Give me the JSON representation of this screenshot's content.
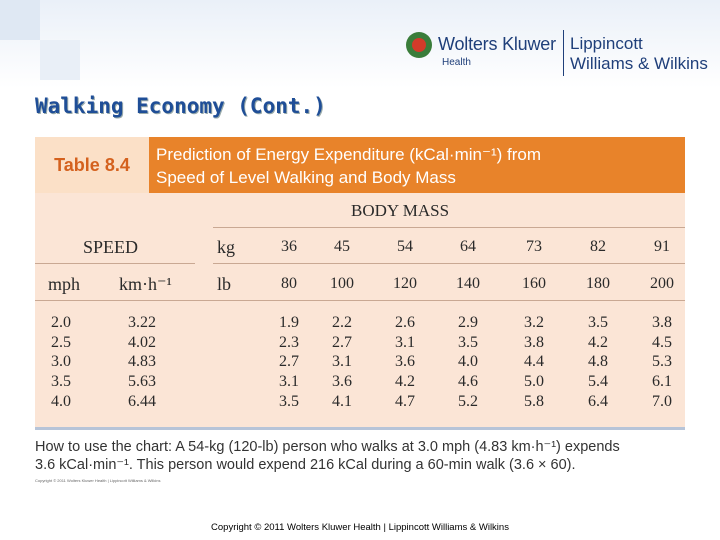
{
  "logo": {
    "company": "Wolters Kluwer",
    "division": "Health",
    "partner_line1": "Lippincott",
    "partner_line2": "Williams & Wilkins"
  },
  "slide_title": "Walking Economy (Cont.)",
  "table": {
    "label": "Table 8.4",
    "caption_line1": "Prediction of Energy Expenditure (kCal·min⁻¹) from",
    "caption_line2": "Speed of Level Walking and Body Mass",
    "group_header": "BODY MASS",
    "speed_header": "SPEED",
    "kg_label": "kg",
    "lb_label": "lb",
    "mph_label": "mph",
    "kmh_label": "km·h⁻¹",
    "kg_values": [
      "36",
      "45",
      "54",
      "64",
      "73",
      "82",
      "91"
    ],
    "lb_values": [
      "80",
      "100",
      "120",
      "140",
      "160",
      "180",
      "200"
    ],
    "mph": [
      "2.0",
      "2.5",
      "3.0",
      "3.5",
      "4.0"
    ],
    "kmh": [
      "3.22",
      "4.02",
      "4.83",
      "5.63",
      "6.44"
    ],
    "columns": [
      [
        "1.9",
        "2.3",
        "2.7",
        "3.1",
        "3.5"
      ],
      [
        "2.2",
        "2.7",
        "3.1",
        "3.6",
        "4.1"
      ],
      [
        "2.6",
        "3.1",
        "3.6",
        "4.2",
        "4.7"
      ],
      [
        "2.9",
        "3.5",
        "4.0",
        "4.6",
        "5.2"
      ],
      [
        "3.2",
        "3.8",
        "4.4",
        "5.0",
        "5.8"
      ],
      [
        "3.5",
        "4.2",
        "4.8",
        "5.4",
        "6.4"
      ],
      [
        "3.8",
        "4.5",
        "5.3",
        "6.1",
        "7.0"
      ]
    ]
  },
  "note_line1": "How to use the chart: A 54-kg (120-lb) person who walks at 3.0 mph (4.83 km·h⁻¹) expends",
  "note_line2": "3.6 kCal·min⁻¹. This person would expend 216 kCal during a 60-min walk (3.6 × 60).",
  "tiny_copyright": "Copyright © 2011 Wolters Kluwer Health | Lippincott Williams & Wilkins",
  "footer": "Copyright © 2011 Wolters Kluwer Health | Lippincott Williams & Wilkins",
  "colors": {
    "title": "#1f4e97",
    "table_header": "#e8832a",
    "table_body": "#fbe5d6",
    "table_label": "#d4611e"
  }
}
